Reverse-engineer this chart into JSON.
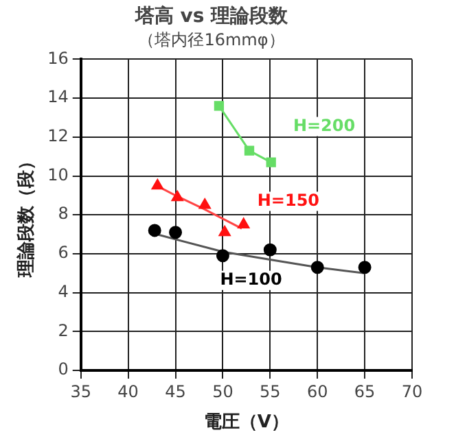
{
  "chart_data": {
    "type": "scatter",
    "title": "塔高 vs 理論段数",
    "subtitle": "（塔内径16mmφ）",
    "xlabel": "電圧（V）",
    "ylabel": "理論段数（段）",
    "xlim": [
      35,
      70
    ],
    "xticks": [
      35,
      40,
      45,
      50,
      55,
      60,
      65,
      70
    ],
    "ylim": [
      0,
      16
    ],
    "yticks": [
      0,
      2,
      4,
      6,
      8,
      10,
      12,
      14,
      16
    ],
    "grid": true,
    "legend": false,
    "series": [
      {
        "name": "H=200",
        "type": "line",
        "marker": "square",
        "color": "#66dd66",
        "x": [
          49.6,
          52.8,
          55.1
        ],
        "values": [
          13.6,
          11.3,
          10.7
        ]
      },
      {
        "name": "H=150",
        "type": "scatter",
        "marker": "triangle",
        "color": "#ff1111",
        "x": [
          43.1,
          45.2,
          48.1,
          50.2,
          52.2
        ],
        "values": [
          9.5,
          8.9,
          8.5,
          7.1,
          7.5
        ]
      },
      {
        "type": "line",
        "marker": "none",
        "color": "#ff4444",
        "x": [
          43,
          45,
          48,
          50,
          52
        ],
        "values": [
          9.5,
          9.0,
          8.3,
          7.8,
          7.3
        ]
      },
      {
        "name": "H=100",
        "type": "scatter",
        "marker": "circle",
        "color": "#000000",
        "x": [
          42.8,
          45,
          50,
          55,
          60,
          65
        ],
        "values": [
          7.2,
          7.1,
          5.9,
          6.2,
          5.3,
          5.3
        ]
      },
      {
        "type": "line",
        "marker": "none",
        "color": "#555555",
        "x": [
          43,
          50,
          55,
          60,
          65
        ],
        "values": [
          7.0,
          6.1,
          5.7,
          5.3,
          5.0
        ]
      }
    ]
  }
}
